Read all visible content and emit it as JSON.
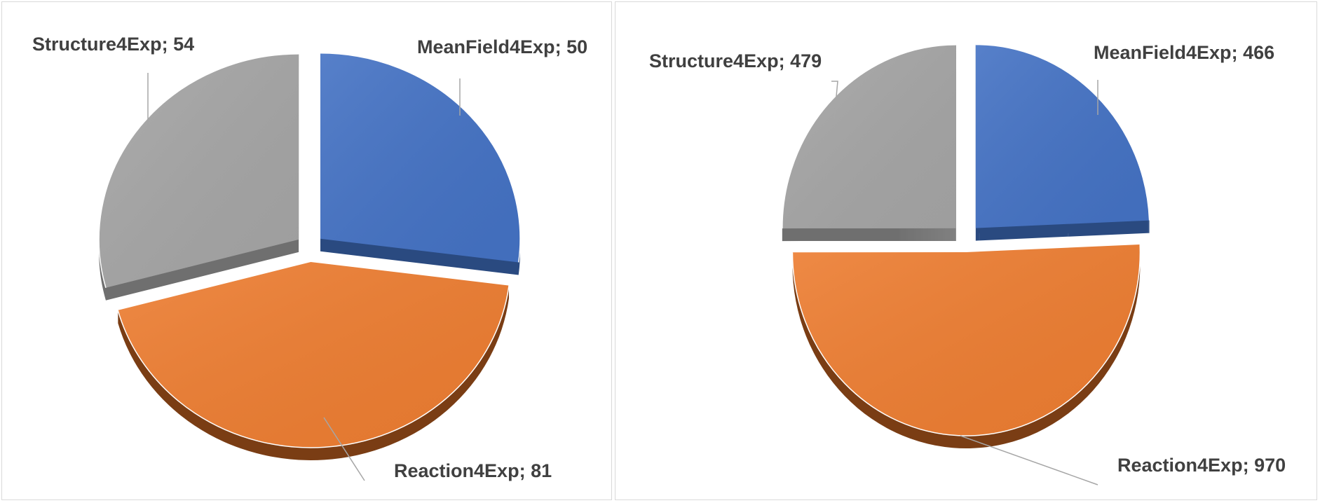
{
  "chart_data": [
    {
      "type": "pie",
      "slices": [
        {
          "label": "MeanField4Exp",
          "value": 50,
          "color": "#4472c4",
          "side_color": "#2a4a80"
        },
        {
          "label": "Reaction4Exp",
          "value": 81,
          "color": "#ed7d31",
          "side_color": "#7a3d14"
        },
        {
          "label": "Structure4Exp",
          "value": 54,
          "color": "#a5a5a5",
          "side_color": "#6f6f6f"
        }
      ]
    },
    {
      "type": "pie",
      "slices": [
        {
          "label": "MeanField4Exp",
          "value": 466,
          "color": "#4472c4",
          "side_color": "#2a4a80"
        },
        {
          "label": "Reaction4Exp",
          "value": 970,
          "color": "#ed7d31",
          "side_color": "#7a3d14"
        },
        {
          "label": "Structure4Exp",
          "value": 479,
          "color": "#a5a5a5",
          "side_color": "#6f6f6f"
        }
      ]
    }
  ]
}
